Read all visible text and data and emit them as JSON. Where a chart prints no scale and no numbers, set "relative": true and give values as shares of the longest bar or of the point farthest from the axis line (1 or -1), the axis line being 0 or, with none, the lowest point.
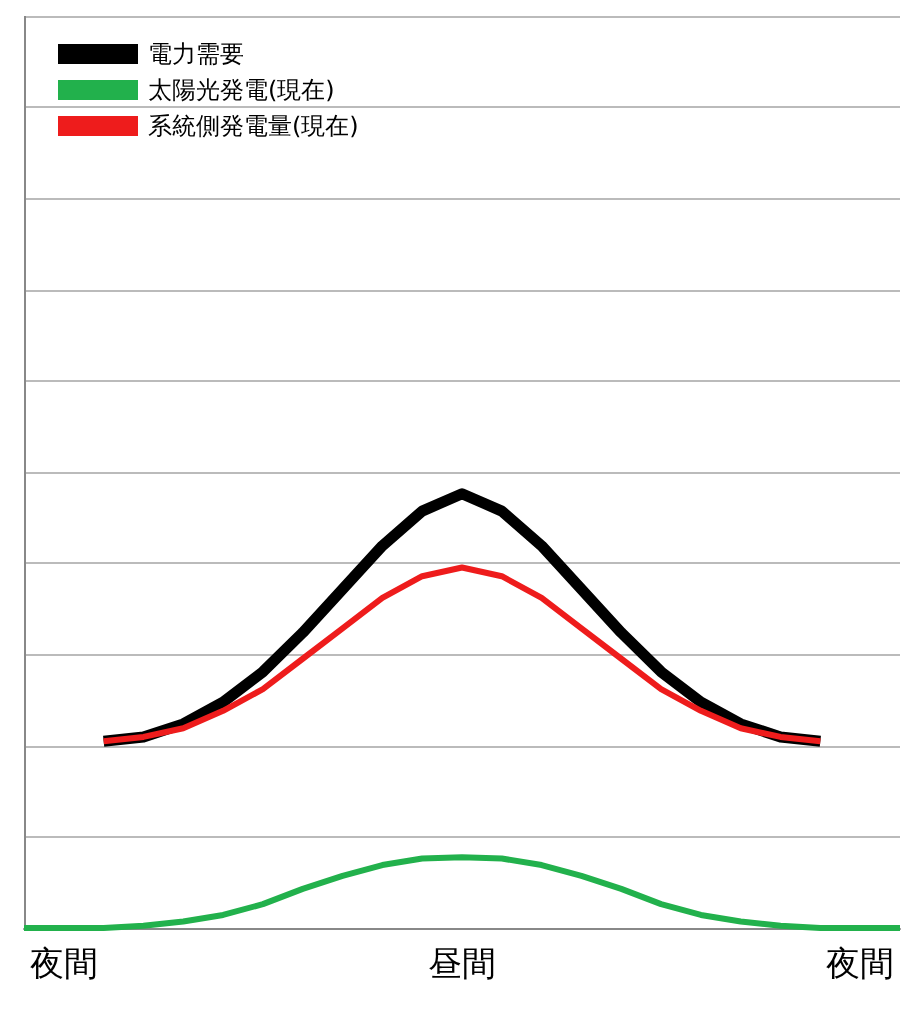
{
  "chart_data": {
    "type": "line",
    "relative": true,
    "categories": [
      null,
      "夜間",
      null,
      null,
      null,
      null,
      null,
      null,
      null,
      null,
      null,
      "昼間",
      null,
      null,
      null,
      null,
      null,
      null,
      null,
      null,
      null,
      "夜間",
      null
    ],
    "series": [
      {
        "name": "電力需要",
        "color": "#000000",
        "values": [
          null,
          null,
          0.43,
          0.44,
          0.47,
          0.52,
          0.59,
          0.68,
          0.78,
          0.88,
          0.96,
          1.0,
          0.96,
          0.88,
          0.78,
          0.68,
          0.59,
          0.52,
          0.47,
          0.44,
          0.43,
          null,
          null
        ]
      },
      {
        "name": "太陽光発電(現在)",
        "color": "#22b14c",
        "values": [
          0,
          0,
          0,
          0.005,
          0.015,
          0.03,
          0.055,
          0.09,
          0.12,
          0.145,
          0.16,
          0.163,
          0.16,
          0.145,
          0.12,
          0.09,
          0.055,
          0.03,
          0.015,
          0.005,
          0,
          0,
          0
        ]
      },
      {
        "name": "系統側発電量(現在)",
        "color": "#ee1c1c",
        "values": [
          null,
          null,
          0.43,
          0.44,
          0.46,
          0.5,
          0.55,
          0.62,
          0.69,
          0.76,
          0.81,
          0.83,
          0.81,
          0.76,
          0.69,
          0.62,
          0.55,
          0.5,
          0.46,
          0.44,
          0.43,
          null,
          null
        ]
      }
    ],
    "grid": "y",
    "legend": "top left",
    "marker": "none",
    "line_style": "solid"
  }
}
